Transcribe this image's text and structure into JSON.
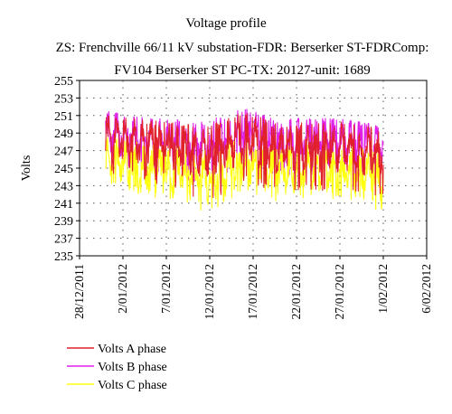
{
  "chart_data": {
    "type": "line",
    "title": "Voltage profile",
    "subtitle_lines": [
      "ZS: Frenchville 66/11 kV substation-FDR: Berserker ST-FDRComp:",
      "FV104 Berserker ST PC-TX: 20127-unit: 1689"
    ],
    "ylabel": "Volts",
    "xlabel": "",
    "ylim": [
      235,
      255
    ],
    "y_ticks": [
      235,
      237,
      239,
      241,
      243,
      245,
      247,
      249,
      251,
      253,
      255
    ],
    "x_ticks": [
      "28/12/2011",
      "2/01/2012",
      "7/01/2012",
      "12/01/2012",
      "17/01/2012",
      "22/01/2012",
      "27/01/2012",
      "1/02/2012",
      "6/02/2012"
    ],
    "x_range": [
      "28/12/2011",
      "6/02/2012"
    ],
    "data_range": [
      "31/12/2011",
      "1/02/2012"
    ],
    "grid": true,
    "legend_position": "bottom-left",
    "series": [
      {
        "name": "Volts A phase",
        "color": "#e0202a",
        "x": [
          "31/12/2011",
          "4/01/2012",
          "8/01/2012",
          "12/01/2012",
          "16/01/2012",
          "20/01/2012",
          "24/01/2012",
          "28/01/2012",
          "1/02/2012"
        ],
        "values": [
          248.5,
          247.8,
          247.0,
          246.5,
          248.5,
          247.0,
          247.2,
          247.0,
          246.5
        ],
        "min": [
          244.5,
          243.8,
          242.5,
          241.0,
          243.5,
          242.0,
          242.5,
          242.0,
          241.5
        ],
        "max": [
          251.2,
          250.5,
          250.2,
          250.0,
          251.5,
          250.0,
          250.5,
          250.2,
          249.5
        ]
      },
      {
        "name": "Volts B phase",
        "color": "#e020e8",
        "x": [
          "31/12/2011",
          "4/01/2012",
          "8/01/2012",
          "12/01/2012",
          "16/01/2012",
          "20/01/2012",
          "24/01/2012",
          "28/01/2012",
          "1/02/2012"
        ],
        "values": [
          249.0,
          248.5,
          248.0,
          247.5,
          249.5,
          248.0,
          248.2,
          248.0,
          247.5
        ],
        "min": [
          245.5,
          245.0,
          244.0,
          243.0,
          246.0,
          244.0,
          244.0,
          244.0,
          243.5
        ],
        "max": [
          251.5,
          250.8,
          250.5,
          250.5,
          251.8,
          250.5,
          250.8,
          250.5,
          249.8
        ]
      },
      {
        "name": "Volts C phase",
        "color": "#ffff10",
        "x": [
          "31/12/2011",
          "4/01/2012",
          "8/01/2012",
          "12/01/2012",
          "16/01/2012",
          "20/01/2012",
          "24/01/2012",
          "28/01/2012",
          "1/02/2012"
        ],
        "values": [
          246.0,
          245.0,
          244.5,
          243.5,
          246.0,
          244.5,
          244.8,
          244.5,
          244.0
        ],
        "min": [
          243.5,
          242.0,
          241.0,
          239.8,
          242.5,
          241.0,
          241.5,
          241.5,
          240.0
        ],
        "max": [
          248.5,
          248.0,
          247.5,
          247.0,
          249.0,
          247.5,
          247.8,
          247.5,
          247.0
        ]
      }
    ]
  }
}
